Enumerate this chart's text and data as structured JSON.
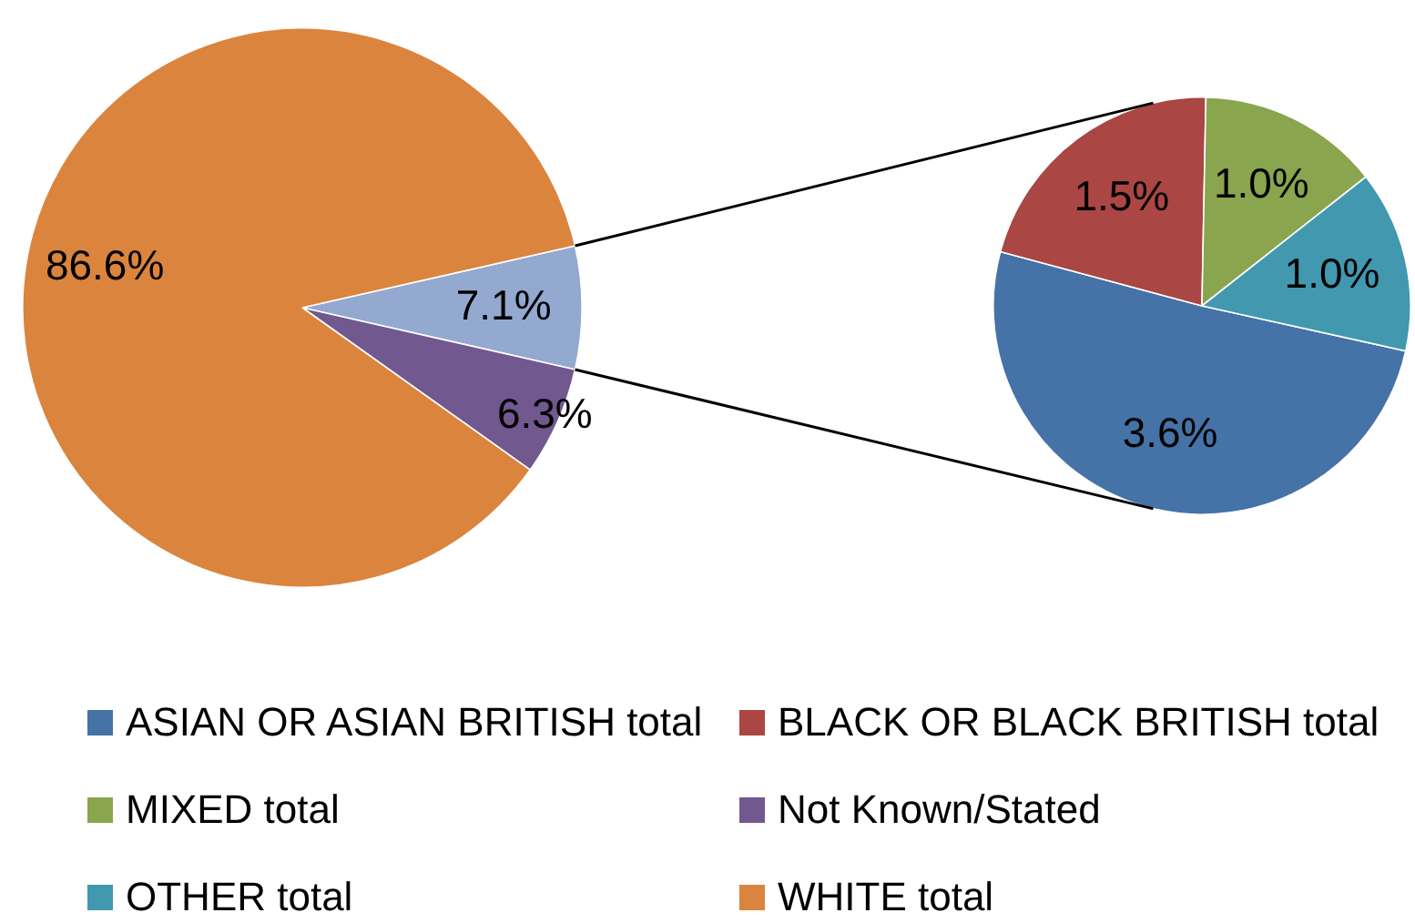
{
  "chart_data": [
    {
      "type": "pie",
      "categories": [
        null,
        "Not Known/Stated",
        "WHITE total"
      ],
      "values": [
        7.1,
        6.3,
        86.6
      ],
      "colors": [
        "#93a9cf",
        "#71588f",
        "#db843d"
      ],
      "value_labels": [
        "7.1%",
        "6.3%",
        "86.6%"
      ],
      "legend": "bottom"
    },
    {
      "type": "pie",
      "categories": [
        "ASIAN OR ASIAN BRITISH total",
        "BLACK OR BLACK BRITISH total",
        "MIXED total",
        "OTHER total"
      ],
      "values": [
        3.6,
        1.5,
        1.0,
        1.0
      ],
      "colors": [
        "#4572a7",
        "#aa4643",
        "#89a54e",
        "#4198af"
      ],
      "value_labels": [
        "3.6%",
        "1.5%",
        "1.0%",
        "1.0%"
      ],
      "legend": "bottom"
    }
  ]
}
